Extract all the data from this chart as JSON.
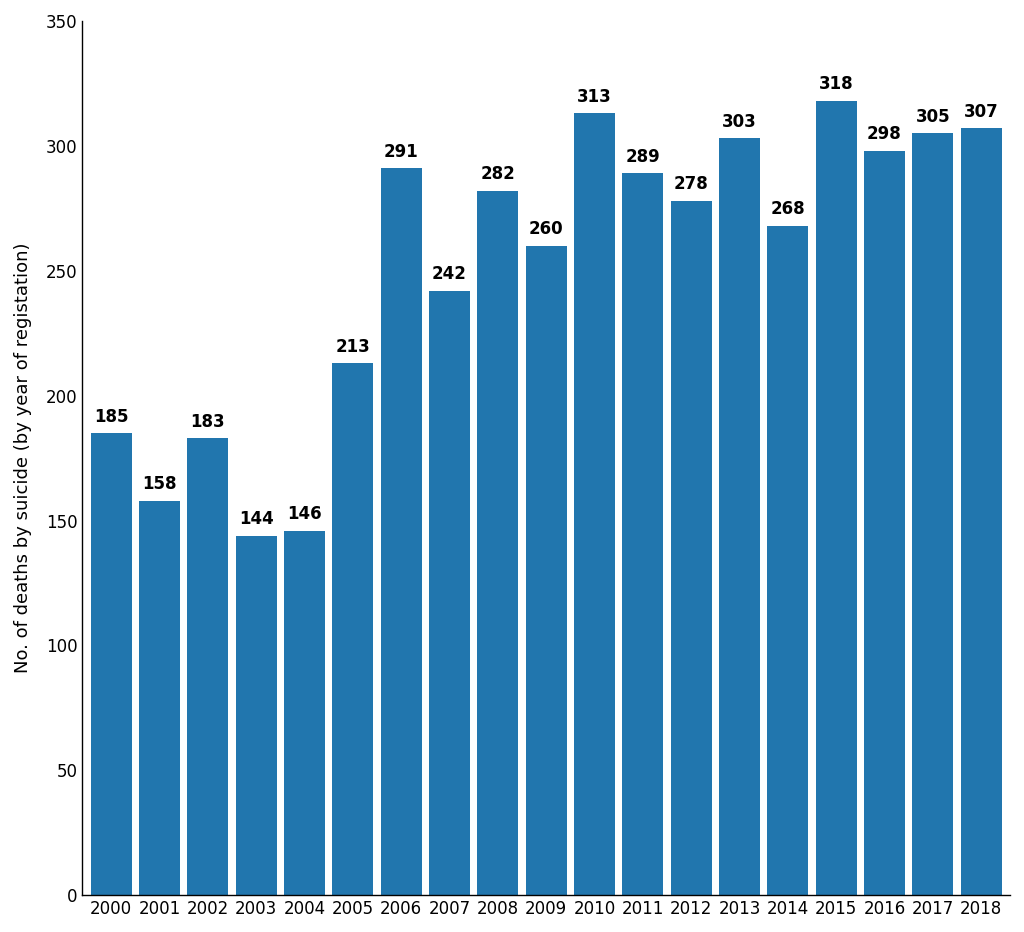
{
  "years": [
    2000,
    2001,
    2002,
    2003,
    2004,
    2005,
    2006,
    2007,
    2008,
    2009,
    2010,
    2011,
    2012,
    2013,
    2014,
    2015,
    2016,
    2017,
    2018
  ],
  "values": [
    185,
    158,
    183,
    144,
    146,
    213,
    291,
    242,
    282,
    260,
    313,
    289,
    278,
    303,
    268,
    318,
    298,
    305,
    307
  ],
  "bar_color": "#2176AE",
  "ylabel": "No. of deaths by suicide (by year of registation)",
  "ylim": [
    0,
    350
  ],
  "yticks": [
    0,
    50,
    100,
    150,
    200,
    250,
    300,
    350
  ],
  "label_fontsize": 13,
  "tick_fontsize": 12,
  "value_label_fontsize": 12,
  "bar_width": 0.85,
  "figsize": [
    10.24,
    9.32
  ],
  "dpi": 100
}
